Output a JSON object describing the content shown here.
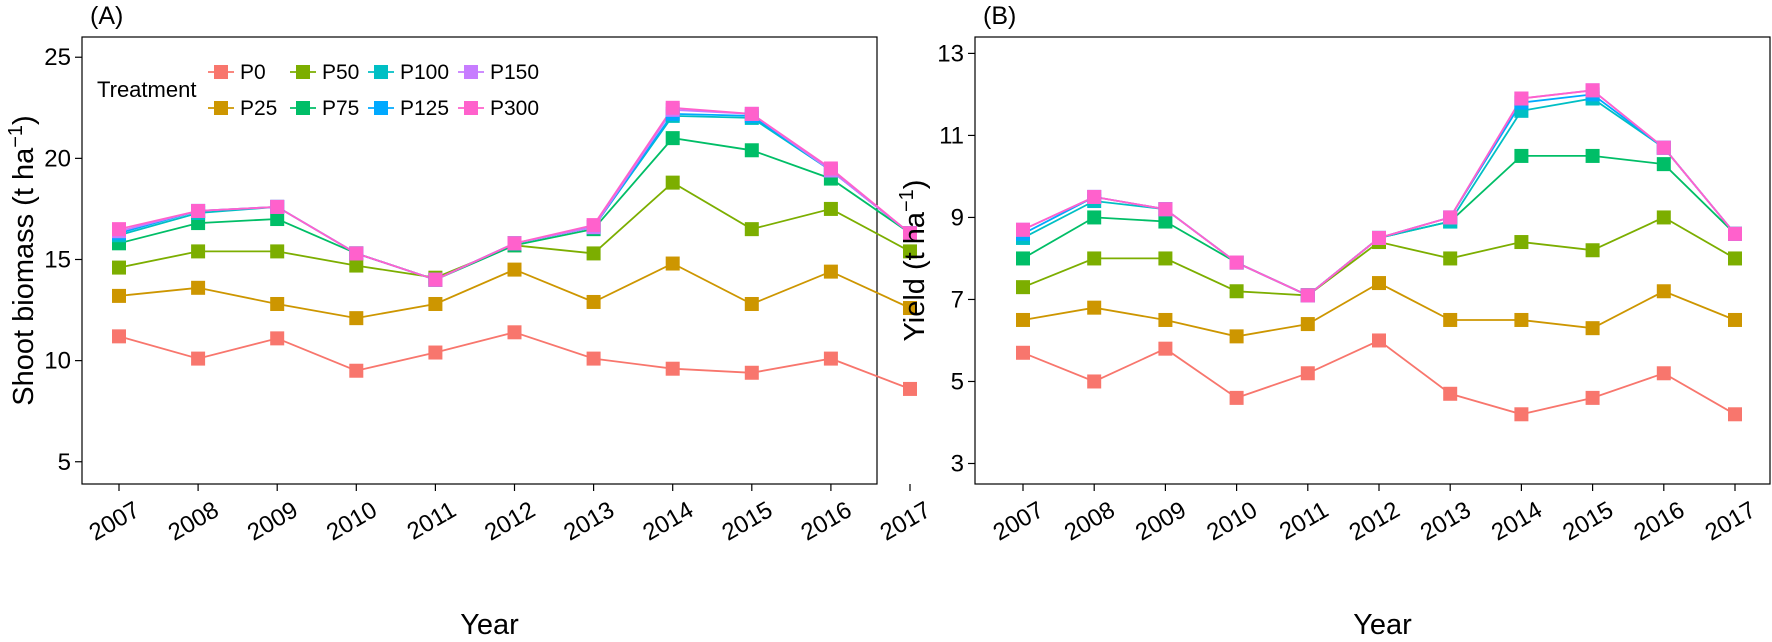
{
  "chart_data": [
    {
      "type": "line",
      "panel_label": "(A)",
      "xlabel": "Year",
      "ylabel": "Shoot biomass (t ha",
      "ylabel_sup": "−1",
      "ylabel_close": ")",
      "ylim": [
        3.9,
        26.0
      ],
      "yticks": [
        "5",
        "10",
        "15",
        "20",
        "25"
      ],
      "categories": [
        "2007",
        "2008",
        "2009",
        "2010",
        "2011",
        "2012",
        "2013",
        "2014",
        "2015",
        "2016",
        "2017"
      ],
      "series": [
        {
          "name": "P0",
          "values": [
            11.2,
            10.1,
            11.1,
            9.5,
            10.4,
            11.4,
            10.1,
            9.6,
            9.4,
            10.1,
            8.6
          ]
        },
        {
          "name": "P25",
          "values": [
            13.2,
            13.6,
            12.8,
            12.1,
            12.8,
            14.5,
            12.9,
            14.8,
            12.8,
            14.4,
            12.6
          ]
        },
        {
          "name": "P50",
          "values": [
            14.6,
            15.4,
            15.4,
            14.7,
            14.1,
            15.7,
            15.3,
            18.8,
            16.5,
            17.5,
            15.4
          ]
        },
        {
          "name": "P75",
          "values": [
            15.8,
            16.8,
            17.0,
            15.3,
            14.0,
            15.7,
            16.5,
            21.0,
            20.4,
            19.0,
            16.3
          ]
        },
        {
          "name": "P100",
          "values": [
            16.2,
            17.3,
            17.6,
            15.3,
            14.0,
            15.8,
            16.6,
            22.1,
            22.0,
            19.4,
            16.3
          ]
        },
        {
          "name": "P125",
          "values": [
            16.3,
            17.4,
            17.6,
            15.3,
            14.0,
            15.8,
            16.6,
            22.2,
            22.1,
            19.4,
            16.3
          ]
        },
        {
          "name": "P150",
          "values": [
            16.4,
            17.4,
            17.6,
            15.3,
            14.0,
            15.8,
            16.6,
            22.4,
            22.2,
            19.4,
            16.3
          ]
        },
        {
          "name": "P300",
          "values": [
            16.5,
            17.4,
            17.6,
            15.3,
            14.0,
            15.8,
            16.7,
            22.5,
            22.2,
            19.5,
            16.3
          ]
        }
      ],
      "legend": {
        "title": "Treatment",
        "placement": "top-left inside",
        "entries": [
          "P0",
          "P25",
          "P50",
          "P75",
          "P100",
          "P125",
          "P150",
          "P300"
        ]
      }
    },
    {
      "type": "line",
      "panel_label": "(B)",
      "xlabel": "Year",
      "ylabel": "Yield (t ha",
      "ylabel_sup": "−1",
      "ylabel_close": ")",
      "ylim": [
        2.5,
        13.4
      ],
      "yticks": [
        "3",
        "5",
        "7",
        "9",
        "11",
        "13"
      ],
      "categories": [
        "2007",
        "2008",
        "2009",
        "2010",
        "2011",
        "2012",
        "2013",
        "2014",
        "2015",
        "2016",
        "2017"
      ],
      "series": [
        {
          "name": "P0",
          "values": [
            5.7,
            5.0,
            5.8,
            4.6,
            5.2,
            6.0,
            4.7,
            4.2,
            4.6,
            5.2,
            4.2
          ]
        },
        {
          "name": "P25",
          "values": [
            6.5,
            6.8,
            6.5,
            6.1,
            6.4,
            7.4,
            6.5,
            6.5,
            6.3,
            7.2,
            6.5
          ]
        },
        {
          "name": "P50",
          "values": [
            7.3,
            8.0,
            8.0,
            7.2,
            7.1,
            8.4,
            8.0,
            8.4,
            8.2,
            9.0,
            8.0
          ]
        },
        {
          "name": "P75",
          "values": [
            8.0,
            9.0,
            8.9,
            7.9,
            7.1,
            8.5,
            8.9,
            10.5,
            10.5,
            10.3,
            8.6
          ]
        },
        {
          "name": "P100",
          "values": [
            8.5,
            9.4,
            9.2,
            7.9,
            7.1,
            8.5,
            8.9,
            11.6,
            11.9,
            10.7,
            8.6
          ]
        },
        {
          "name": "P125",
          "values": [
            8.6,
            9.5,
            9.2,
            7.9,
            7.1,
            8.5,
            9.0,
            11.8,
            12.0,
            10.7,
            8.6
          ]
        },
        {
          "name": "P150",
          "values": [
            8.7,
            9.5,
            9.2,
            7.9,
            7.1,
            8.5,
            9.0,
            11.9,
            12.1,
            10.7,
            8.6
          ]
        },
        {
          "name": "P300",
          "values": [
            8.7,
            9.5,
            9.2,
            7.9,
            7.1,
            8.5,
            9.0,
            11.9,
            12.1,
            10.7,
            8.6
          ]
        }
      ]
    }
  ],
  "colors": {
    "P0": "#F8766D",
    "P25": "#CD9600",
    "P50": "#7CAE00",
    "P75": "#00BE67",
    "P100": "#00BFC4",
    "P125": "#00A9FF",
    "P150": "#C77CFF",
    "P300": "#FF61CC"
  }
}
